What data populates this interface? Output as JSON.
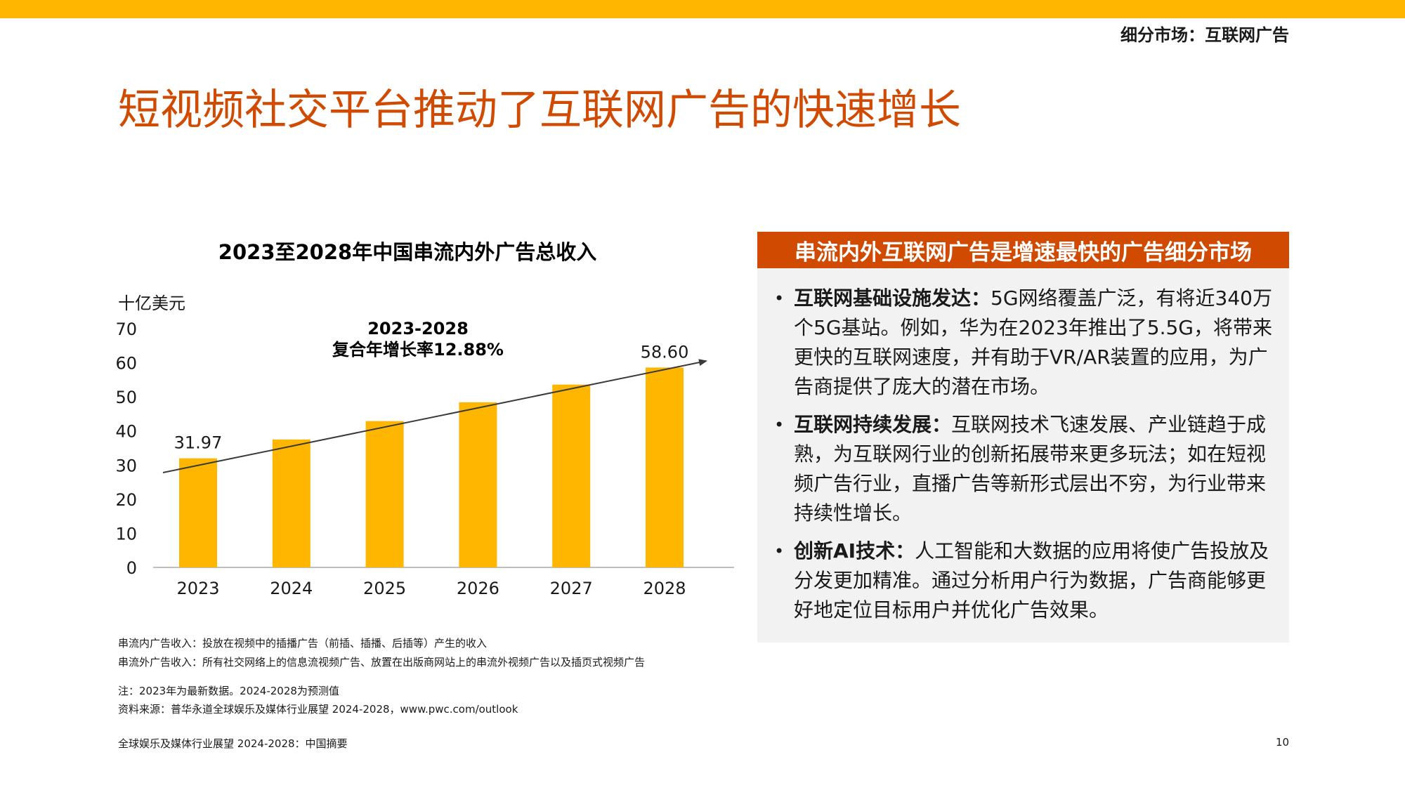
{
  "header": {
    "section_label": "细分市场：互联网广告",
    "title": "短视频社交平台推动了互联网广告的快速增长"
  },
  "chart_data": {
    "type": "bar",
    "title": "2023至2028年中国串流内外广告总收入",
    "ylabel": "十亿美元",
    "ylim": [
      0,
      70
    ],
    "yticks": [
      "0",
      "10",
      "20",
      "30",
      "40",
      "50",
      "60",
      "70"
    ],
    "categories": [
      "2023",
      "2024",
      "2025",
      "2026",
      "2027",
      "2028"
    ],
    "values": [
      31.97,
      37.5,
      42.9,
      48.4,
      53.6,
      58.6
    ],
    "data_labels": {
      "2023": "31.97",
      "2028": "58.60"
    },
    "annotation": {
      "line1": "2023-2028",
      "line2": "复合年增长率12.88%"
    },
    "trend_arrow": true,
    "color": "#ffb600",
    "grid": false
  },
  "notes": {
    "line1": "串流内广告收入：投放在视频中的插播广告（前插、插播、后插等）产生的收入",
    "line2": "串流外广告收入：所有社交网络上的信息流视频广告、放置在出版商网站上的串流外视频广告以及插页式视频广告",
    "note": "注：2023年为最新数据。2024-2028为预测值",
    "source": "资料来源：普华永道全球娱乐及媒体行业展望 2024-2028，www.pwc.com/outlook"
  },
  "panel": {
    "header": "串流内外互联网广告是增速最快的广告细分市场",
    "bullets": [
      {
        "title": "互联网基础设施发达：",
        "text": "5G网络覆盖广泛，有将近340万个5G基站。例如，华为在2023年推出了5.5G，将带来更快的互联网速度，并有助于VR/AR装置的应用，为广告商提供了庞大的潜在市场。"
      },
      {
        "title": "互联网持续发展：",
        "text": "互联网技术飞速发展、产业链趋于成熟，为互联网行业的创新拓展带来更多玩法；如在短视频广告行业，直播广告等新形式层出不穷，为行业带来持续性增长。"
      },
      {
        "title": "创新AI技术：",
        "text": "人工智能和大数据的应用将使广告投放及分发更加精准。通过分析用户行为数据，广告商能够更好地定位目标用户并优化广告效果。"
      }
    ]
  },
  "footer": {
    "text": "全球娱乐及媒体行业展望 2024-2028：中国摘要",
    "page_number": "10"
  },
  "colors": {
    "accent": "#d04a02",
    "bar": "#ffb600",
    "panel_bg": "#f2f2f2"
  }
}
